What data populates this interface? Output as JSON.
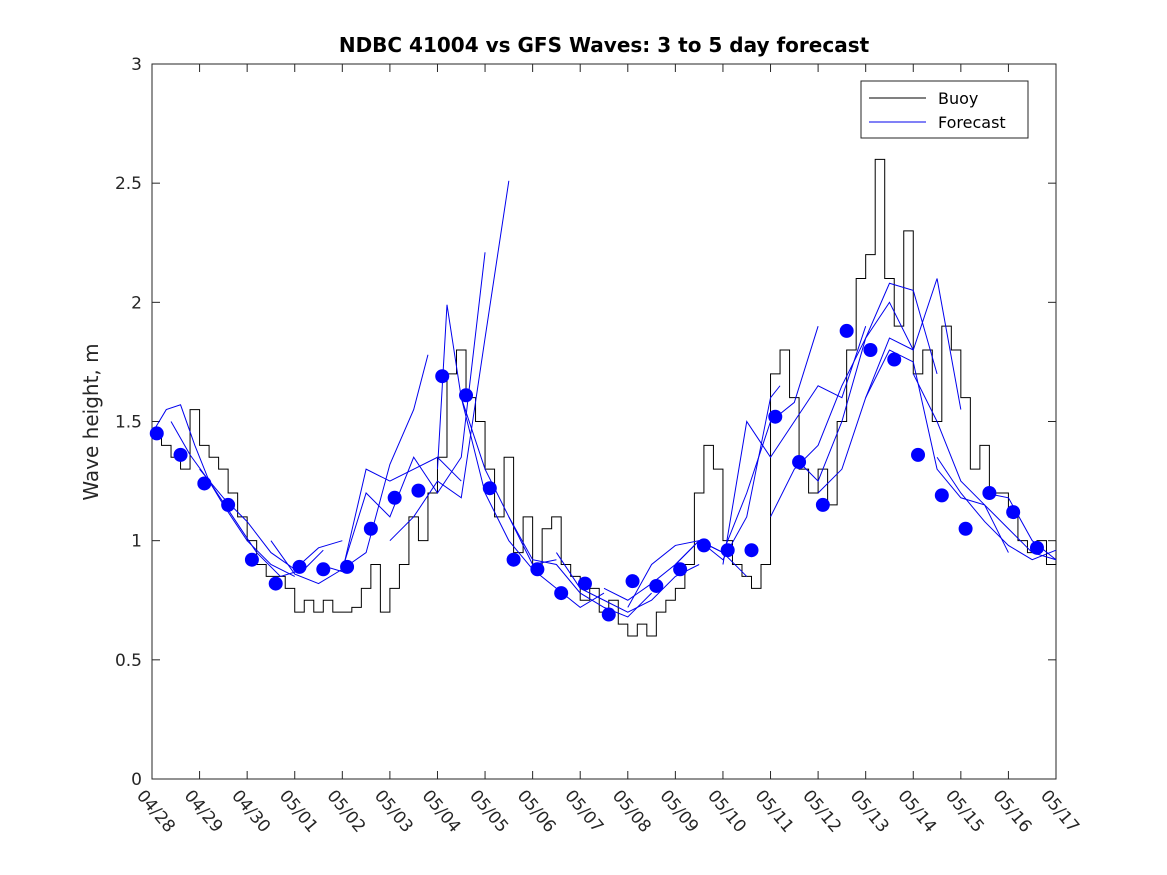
{
  "chart_data": {
    "type": "line",
    "title": "NDBC 41004 vs GFS Waves: 3 to 5 day forecast",
    "xlabel": "",
    "ylabel": "Wave height, m",
    "ylim": [
      0,
      3
    ],
    "yticks": [
      "0",
      "0.5",
      "1",
      "1.5",
      "2",
      "2.5",
      "3"
    ],
    "xlim": [
      0,
      19
    ],
    "xticks": [
      "04/28",
      "04/29",
      "04/30",
      "05/01",
      "05/02",
      "05/03",
      "05/04",
      "05/05",
      "05/06",
      "05/07",
      "05/08",
      "05/09",
      "05/10",
      "05/11",
      "05/12",
      "05/13",
      "05/14",
      "05/15",
      "05/16",
      "05/17"
    ],
    "grid": false,
    "legend_position": "top-right",
    "colors": {
      "buoy": "#000000",
      "forecast": "#0000ee",
      "marker": "#0000ff"
    },
    "series": [
      {
        "name": "Buoy",
        "x_days": [
          0,
          0.2,
          0.4,
          0.6,
          0.8,
          1.0,
          1.2,
          1.4,
          1.6,
          1.8,
          2.0,
          2.2,
          2.4,
          2.6,
          2.8,
          3.0,
          3.2,
          3.4,
          3.6,
          3.8,
          4.0,
          4.2,
          4.4,
          4.6,
          4.8,
          5.0,
          5.2,
          5.4,
          5.6,
          5.8,
          6.0,
          6.2,
          6.4,
          6.6,
          6.8,
          7.0,
          7.2,
          7.4,
          7.6,
          7.8,
          8.0,
          8.2,
          8.4,
          8.6,
          8.8,
          9.0,
          9.2,
          9.4,
          9.6,
          9.8,
          10.0,
          10.2,
          10.4,
          10.6,
          10.8,
          11.0,
          11.2,
          11.4,
          11.6,
          11.8,
          12.0,
          12.2,
          12.4,
          12.6,
          12.8,
          13.0,
          13.2,
          13.4,
          13.6,
          13.8,
          14.0,
          14.2,
          14.4,
          14.6,
          14.8,
          15.0,
          15.2,
          15.4,
          15.6,
          15.8,
          16.0,
          16.2,
          16.4,
          16.6,
          16.8,
          17.0,
          17.2,
          17.4,
          17.6,
          17.8,
          18.0,
          18.2,
          18.4,
          18.6,
          18.8,
          19.0
        ],
        "values": [
          1.45,
          1.4,
          1.35,
          1.3,
          1.55,
          1.4,
          1.35,
          1.3,
          1.2,
          1.1,
          1.0,
          0.9,
          0.85,
          0.85,
          0.8,
          0.7,
          0.75,
          0.7,
          0.75,
          0.7,
          0.7,
          0.72,
          0.8,
          0.9,
          0.7,
          0.8,
          0.9,
          1.1,
          1.0,
          1.2,
          1.35,
          1.7,
          1.8,
          1.6,
          1.5,
          1.3,
          1.1,
          1.35,
          0.95,
          1.1,
          0.9,
          1.05,
          1.1,
          0.9,
          0.85,
          0.75,
          0.8,
          0.7,
          0.75,
          0.65,
          0.6,
          0.65,
          0.6,
          0.7,
          0.75,
          0.8,
          0.9,
          1.2,
          1.4,
          1.3,
          1.0,
          0.9,
          0.85,
          0.8,
          0.9,
          1.7,
          1.8,
          1.6,
          1.3,
          1.2,
          1.3,
          1.15,
          1.5,
          1.8,
          2.1,
          2.2,
          2.6,
          2.1,
          1.9,
          2.3,
          1.7,
          1.8,
          1.5,
          1.9,
          1.8,
          1.6,
          1.3,
          1.4,
          1.2,
          1.2,
          1.1,
          1.0,
          0.95,
          1.0,
          0.9,
          1.0
        ]
      },
      {
        "name": "Forecast",
        "lines": [
          {
            "x_days": [
              0,
              0.3,
              0.6,
              0.9,
              1.2,
              1.5,
              2.0,
              2.5,
              3.0
            ],
            "values": [
              1.45,
              1.55,
              1.57,
              1.4,
              1.25,
              1.15,
              1.0,
              0.9,
              0.85
            ]
          },
          {
            "x_days": [
              0.4,
              0.8,
              1.2,
              1.7,
              2.2,
              2.7,
              3.2,
              3.6
            ],
            "values": [
              1.5,
              1.36,
              1.25,
              1.1,
              0.95,
              0.85,
              0.88,
              0.96
            ]
          },
          {
            "x_days": [
              1.0,
              1.5,
              2.0,
              2.5,
              3.0,
              3.5,
              4.0
            ],
            "values": [
              1.3,
              1.18,
              1.08,
              0.95,
              0.88,
              0.97,
              1.0
            ]
          },
          {
            "x_days": [
              2.5,
              3.0,
              3.5,
              4.0,
              4.5,
              5.0,
              5.5,
              5.8
            ],
            "values": [
              1.0,
              0.86,
              0.82,
              0.88,
              0.95,
              1.32,
              1.55,
              1.78
            ]
          },
          {
            "x_days": [
              3.5,
              4.0,
              4.5,
              5.0,
              5.5,
              6.0,
              6.5
            ],
            "values": [
              0.9,
              0.87,
              1.3,
              1.25,
              1.3,
              1.35,
              1.25
            ]
          },
          {
            "x_days": [
              4.0,
              4.5,
              5.0,
              5.5,
              6.0,
              6.5,
              7.0
            ],
            "values": [
              0.88,
              1.2,
              1.1,
              1.35,
              1.2,
              1.35,
              2.21
            ]
          },
          {
            "x_days": [
              5.0,
              5.5,
              6.0,
              6.5,
              7.0,
              7.5
            ],
            "values": [
              1.0,
              1.1,
              1.25,
              1.18,
              1.85,
              2.51
            ]
          },
          {
            "x_days": [
              6.0,
              6.2,
              6.5,
              7.0,
              7.5,
              8.0,
              8.5
            ],
            "values": [
              1.3,
              1.99,
              1.6,
              1.3,
              1.1,
              0.9,
              0.92
            ]
          },
          {
            "x_days": [
              6.5,
              7.0,
              7.5,
              8.0,
              8.5,
              9.0,
              9.5
            ],
            "values": [
              1.6,
              1.2,
              1.0,
              0.88,
              0.8,
              0.72,
              0.78
            ]
          },
          {
            "x_days": [
              7.5,
              8.0,
              8.5,
              9.0,
              9.5,
              10.0,
              10.5
            ],
            "values": [
              1.1,
              0.92,
              0.9,
              0.78,
              0.72,
              0.68,
              0.78
            ]
          },
          {
            "x_days": [
              8.5,
              9.0,
              9.5,
              10.0,
              10.5,
              11.0,
              11.5
            ],
            "values": [
              0.95,
              0.8,
              0.75,
              0.7,
              0.75,
              0.85,
              0.9
            ]
          },
          {
            "x_days": [
              9.5,
              10.0,
              10.5,
              11.0,
              11.5,
              12.0,
              12.5
            ],
            "values": [
              0.8,
              0.75,
              0.82,
              0.9,
              1.0,
              0.95,
              0.85
            ]
          },
          {
            "x_days": [
              10.0,
              10.5,
              11.0,
              11.5,
              12.0,
              12.5,
              13.0,
              13.2
            ],
            "values": [
              0.72,
              0.9,
              0.98,
              1.0,
              0.92,
              1.1,
              1.6,
              1.65
            ]
          },
          {
            "x_days": [
              11.0,
              11.5,
              12.0,
              12.5,
              13.0,
              13.5,
              14.0
            ],
            "values": [
              0.9,
              1.0,
              0.95,
              1.2,
              1.5,
              1.58,
              1.9
            ]
          },
          {
            "x_days": [
              12.0,
              12.5,
              13.0,
              13.5,
              14.0,
              14.5,
              15.0
            ],
            "values": [
              0.9,
              1.5,
              1.35,
              1.5,
              1.65,
              1.6,
              1.9
            ]
          },
          {
            "x_days": [
              13.0,
              13.5,
              14.0,
              14.5,
              15.0,
              15.5,
              16.0
            ],
            "values": [
              1.1,
              1.3,
              1.4,
              1.65,
              1.85,
              2.0,
              1.8
            ]
          },
          {
            "x_days": [
              13.5,
              14.0,
              14.5,
              15.0,
              15.5,
              16.0,
              16.5
            ],
            "values": [
              1.35,
              1.25,
              1.5,
              1.85,
              2.08,
              2.05,
              1.7
            ]
          },
          {
            "x_days": [
              14.0,
              14.5,
              15.0,
              15.5,
              16.0,
              16.5,
              17.0
            ],
            "values": [
              1.2,
              1.3,
              1.6,
              1.85,
              1.8,
              2.1,
              1.55
            ]
          },
          {
            "x_days": [
              15.0,
              15.5,
              16.0,
              16.5,
              17.0,
              17.5,
              18.0
            ],
            "values": [
              1.6,
              1.8,
              1.75,
              1.3,
              1.18,
              1.15,
              0.95
            ]
          },
          {
            "x_days": [
              16.0,
              16.5,
              17.0,
              17.5,
              18.0,
              18.5,
              19.0
            ],
            "values": [
              1.7,
              1.5,
              1.25,
              1.15,
              1.05,
              0.95,
              0.92
            ]
          },
          {
            "x_days": [
              16.5,
              17.0,
              17.5,
              18.0,
              18.5,
              19.0
            ],
            "values": [
              1.35,
              1.2,
              1.08,
              0.98,
              0.92,
              0.96
            ]
          },
          {
            "x_days": [
              17.5,
              18.0,
              18.5,
              19.0
            ],
            "values": [
              1.2,
              1.18,
              1.0,
              0.92
            ]
          }
        ]
      }
    ],
    "markers": {
      "x_days": [
        0.1,
        0.6,
        1.1,
        1.6,
        2.1,
        2.6,
        3.1,
        3.6,
        4.1,
        4.6,
        5.1,
        5.6,
        6.1,
        6.6,
        7.1,
        7.6,
        8.1,
        8.6,
        9.1,
        9.6,
        10.1,
        10.6,
        11.1,
        11.6,
        12.1,
        12.6,
        13.1,
        13.6,
        14.1,
        14.6,
        15.1,
        15.6,
        16.1,
        16.6,
        17.1,
        17.6,
        18.1,
        18.6
      ],
      "values": [
        1.45,
        1.36,
        1.24,
        1.15,
        0.92,
        0.82,
        0.89,
        0.88,
        0.89,
        1.05,
        1.18,
        1.21,
        1.69,
        1.61,
        1.22,
        0.92,
        0.88,
        0.78,
        0.82,
        0.69,
        0.83,
        0.81,
        0.88,
        0.98,
        0.96,
        0.96,
        1.52,
        1.33,
        1.15,
        1.88,
        1.8,
        1.76,
        1.36,
        1.19,
        1.05,
        1.2,
        1.12,
        0.97
      ]
    }
  }
}
